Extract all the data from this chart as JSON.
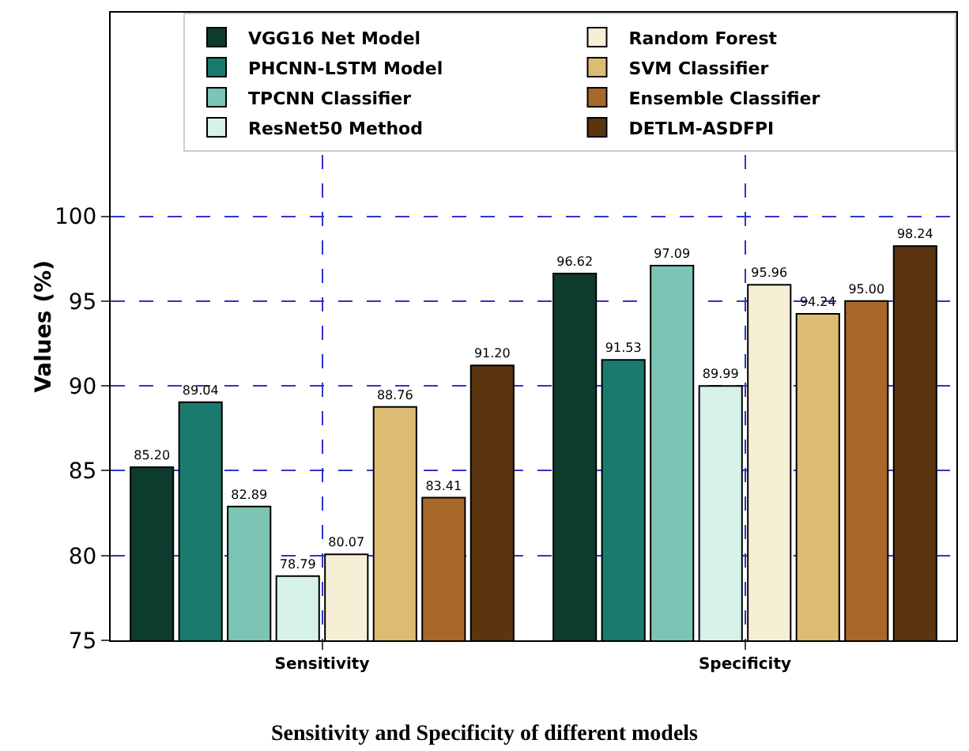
{
  "chart_data": {
    "type": "bar",
    "title": "Sensitivity and Specificity of different models",
    "ylabel": "Values (%)",
    "categories": [
      "Sensitivity",
      "Specificity"
    ],
    "series": [
      {
        "name": "VGG16 Net Model",
        "color": "#0d3b2e",
        "values": [
          85.2,
          96.62
        ],
        "value_labels": [
          "85.20",
          "96.62"
        ]
      },
      {
        "name": "PHCNN-LSTM Model",
        "color": "#1b7a6e",
        "values": [
          89.04,
          91.53
        ],
        "value_labels": [
          "89.04",
          "91.53"
        ]
      },
      {
        "name": "TPCNN Classifier",
        "color": "#7cc4b4",
        "values": [
          82.89,
          97.09
        ],
        "value_labels": [
          "82.89",
          "97.09"
        ]
      },
      {
        "name": "ResNet50 Method",
        "color": "#d6f0ea",
        "values": [
          78.79,
          89.99
        ],
        "value_labels": [
          "78.79",
          "89.99"
        ]
      },
      {
        "name": "Random Forest",
        "color": "#f7eed6",
        "values": [
          80.07,
          95.96
        ],
        "value_labels": [
          "80.07",
          "95.96"
        ]
      },
      {
        "name": "SVM Classifier",
        "color": "#dcbc72",
        "values": [
          88.76,
          94.24
        ],
        "value_labels": [
          "88.76",
          "94.24"
        ]
      },
      {
        "name": "Ensemble Classifier",
        "color": "#a8682a",
        "values": [
          83.41,
          95.0
        ],
        "value_labels": [
          "83.41",
          "95.00"
        ]
      },
      {
        "name": "DETLM-ASDFPI",
        "color": "#5a3510",
        "values": [
          91.2,
          98.24
        ],
        "value_labels": [
          "91.20",
          "98.24"
        ]
      }
    ],
    "ylim": [
      75,
      112
    ],
    "yticks": [
      75,
      80,
      85,
      90,
      95,
      100
    ],
    "grid": true,
    "legend": "top right"
  }
}
